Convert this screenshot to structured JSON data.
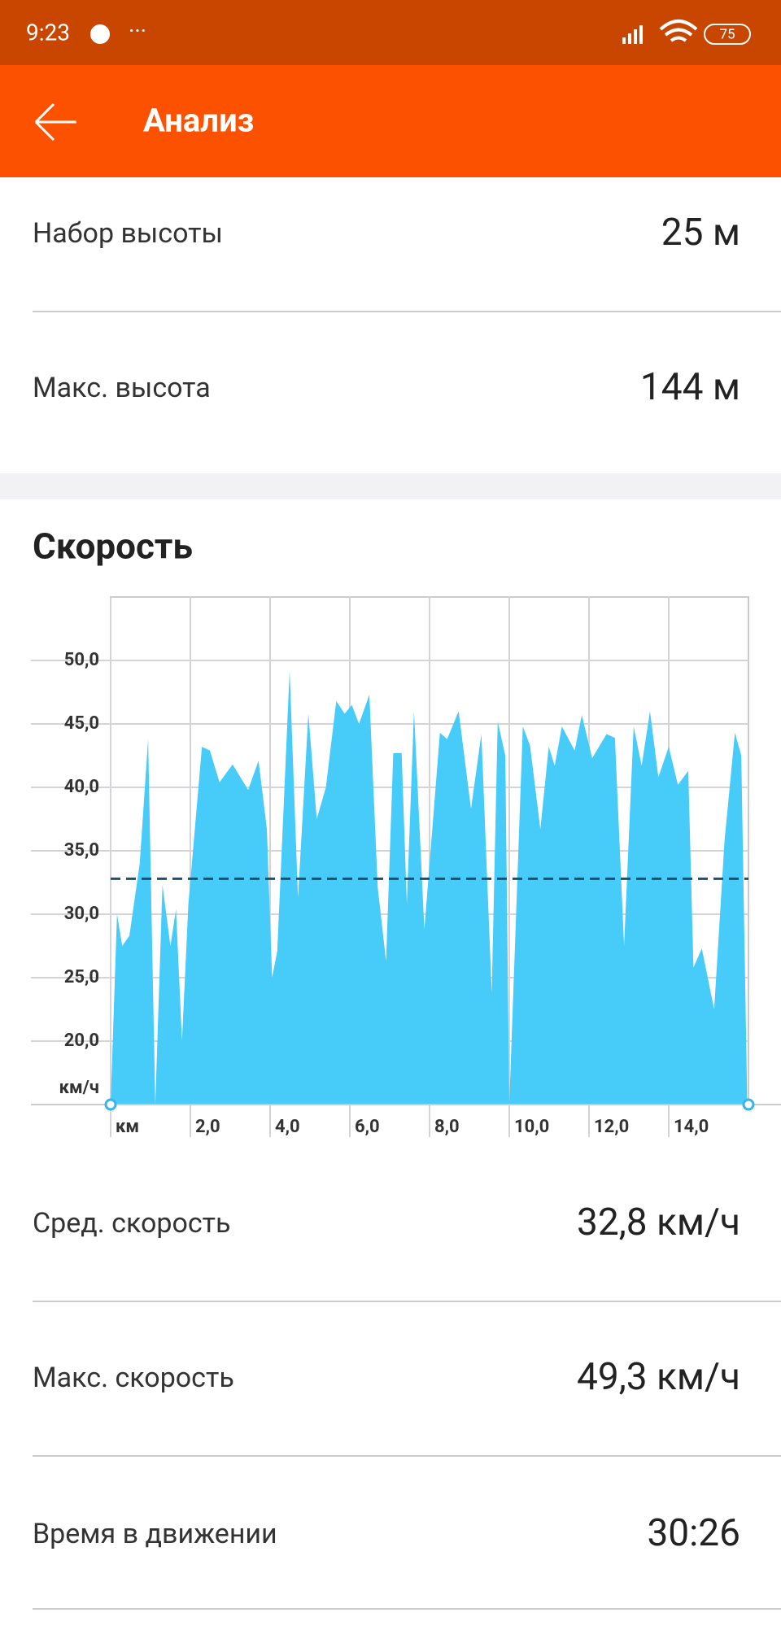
{
  "status_bar": {
    "time": "9:23",
    "battery": "75"
  },
  "app_bar": {
    "title": "Анализ"
  },
  "elevation_stats": [
    {
      "label": "Набор высоты",
      "value": "25 м"
    },
    {
      "label": "Макс. высота",
      "value": "144 м"
    }
  ],
  "speed_section": {
    "title": "Скорость"
  },
  "chart_data": {
    "type": "area",
    "color": "#47cbf8",
    "grid": true,
    "average": 32.8,
    "average_color": "#1d4f6e",
    "x": [
      0,
      0.16,
      0.29,
      0.47,
      0.73,
      0.94,
      1.12,
      1.3,
      1.5,
      1.64,
      1.79,
      1.95,
      2.29,
      2.49,
      2.73,
      3.06,
      3.45,
      3.71,
      3.92,
      4.05,
      4.18,
      4.49,
      4.7,
      4.96,
      5.17,
      5.4,
      5.66,
      5.87,
      6.05,
      6.23,
      6.49,
      6.7,
      6.91,
      7.09,
      7.3,
      7.43,
      7.61,
      7.87,
      8.26,
      8.44,
      8.73,
      9.04,
      9.3,
      9.56,
      9.71,
      9.9,
      10,
      10.34,
      10.52,
      10.78,
      10.99,
      11.14,
      11.32,
      11.64,
      11.82,
      12.08,
      12.44,
      12.65,
      12.88,
      13.12,
      13.32,
      13.53,
      13.74,
      14,
      14.23,
      14.49,
      14.62,
      14.83,
      15.14,
      15.4,
      15.66,
      15.82,
      15.97
    ],
    "values": [
      15,
      30,
      27.5,
      28.3,
      34,
      43.8,
      15,
      32.3,
      27.5,
      30.4,
      20,
      30.8,
      43.2,
      42.9,
      40.4,
      41.8,
      39.8,
      42.1,
      36.7,
      25,
      27.1,
      49.2,
      31.3,
      45.8,
      37.5,
      40,
      46.8,
      45.8,
      46.5,
      45,
      47.3,
      32.1,
      26.3,
      42.7,
      42.7,
      30.8,
      46,
      28.8,
      44.3,
      43.8,
      46,
      38.3,
      44.2,
      23.8,
      45.2,
      42.5,
      15,
      44.8,
      43.3,
      36.7,
      43.2,
      41.7,
      44.8,
      42.9,
      45.7,
      42.3,
      44.2,
      43.9,
      27.5,
      44.8,
      41.7,
      46,
      40.8,
      43.2,
      40.2,
      41.3,
      25.8,
      27.3,
      22.5,
      35.8,
      44.3,
      42.5,
      15
    ],
    "xlim": [
      0,
      16
    ],
    "xticks": [
      {
        "value": 0,
        "label": "км"
      },
      {
        "value": 2,
        "label": "2,0"
      },
      {
        "value": 4,
        "label": "4,0"
      },
      {
        "value": 6,
        "label": "6,0"
      },
      {
        "value": 8,
        "label": "8,0"
      },
      {
        "value": 10,
        "label": "10,0"
      },
      {
        "value": 12,
        "label": "12,0"
      },
      {
        "value": 14,
        "label": "14,0"
      }
    ],
    "ylim": [
      15,
      55
    ],
    "yticks": [
      {
        "value": 15,
        "label": "км/ч"
      },
      {
        "value": 20,
        "label": "20,0"
      },
      {
        "value": 25,
        "label": "25,0"
      },
      {
        "value": 30,
        "label": "30,0"
      },
      {
        "value": 35,
        "label": "35,0"
      },
      {
        "value": 40,
        "label": "40,0"
      },
      {
        "value": 45,
        "label": "45,0"
      },
      {
        "value": 50,
        "label": "50,0"
      }
    ]
  },
  "speed_stats": [
    {
      "label": "Сред. скорость",
      "value": "32,8 км/ч"
    },
    {
      "label": "Макс. скорость",
      "value": "49,3 км/ч"
    },
    {
      "label": "Время в движении",
      "value": "30:26"
    }
  ]
}
